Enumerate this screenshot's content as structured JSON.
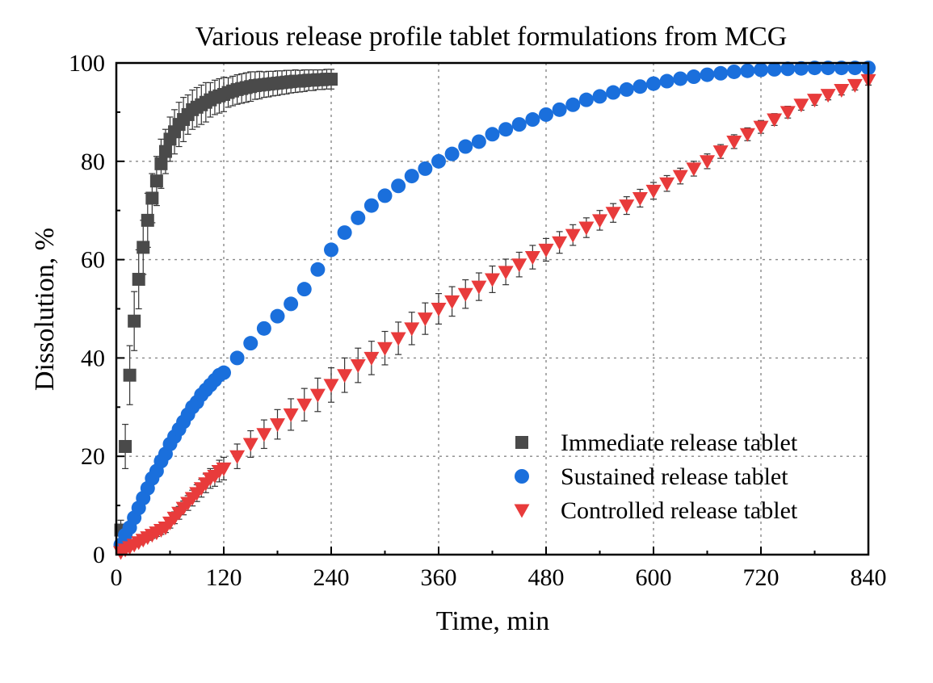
{
  "chart_data": {
    "type": "scatter",
    "title": "Various release profile tablet formulations from MCG",
    "xlabel": "Time, min",
    "ylabel": "Dissolution, %",
    "xlim": [
      0,
      840
    ],
    "ylim": [
      0,
      100
    ],
    "xticks": [
      "0",
      "120",
      "240",
      "360",
      "480",
      "600",
      "720",
      "840"
    ],
    "yticks": [
      "0",
      "20",
      "40",
      "60",
      "80",
      "100"
    ],
    "grid": true,
    "legend_position": "bottom-right",
    "series": [
      {
        "name": "Immediate release tablet",
        "marker": "square",
        "color": "#4a4a4a",
        "x": [
          5,
          10,
          15,
          20,
          25,
          30,
          35,
          40,
          45,
          50,
          55,
          60,
          65,
          70,
          75,
          80,
          85,
          90,
          95,
          100,
          105,
          110,
          115,
          120,
          125,
          130,
          135,
          140,
          145,
          150,
          155,
          160,
          165,
          170,
          175,
          180,
          185,
          190,
          195,
          200,
          205,
          210,
          215,
          220,
          225,
          230,
          235,
          240
        ],
        "y": [
          5,
          22,
          36.5,
          47.5,
          56,
          62.5,
          68,
          72.5,
          76,
          79.5,
          82,
          84.5,
          86,
          87.5,
          88.5,
          89.5,
          90.5,
          91,
          91.5,
          92,
          92.5,
          93,
          93.3,
          93.6,
          94,
          94.3,
          94.6,
          94.8,
          95,
          95.2,
          95.4,
          95.5,
          95.6,
          95.7,
          95.8,
          95.9,
          96,
          96.1,
          96.2,
          96.3,
          96.3,
          96.4,
          96.5,
          96.5,
          96.6,
          96.6,
          96.7,
          96.7
        ],
        "error": [
          2,
          4.5,
          6,
          6,
          6,
          5.5,
          5.5,
          5,
          5,
          5,
          4.5,
          4.5,
          4.5,
          4.5,
          4.5,
          4,
          4,
          4,
          4,
          4,
          3.5,
          3.5,
          3.5,
          3.5,
          3,
          3,
          3,
          3,
          3,
          3,
          2.8,
          2.8,
          2.6,
          2.6,
          2.5,
          2.5,
          2.4,
          2.4,
          2.3,
          2.3,
          2.2,
          2.2,
          2.1,
          2.1,
          2,
          2,
          2,
          2
        ]
      },
      {
        "name": "Sustained release tablet",
        "marker": "circle",
        "color": "#1a6fdc",
        "x": [
          5,
          10,
          15,
          20,
          25,
          30,
          35,
          40,
          45,
          50,
          55,
          60,
          65,
          70,
          75,
          80,
          85,
          90,
          95,
          100,
          105,
          110,
          115,
          120,
          135,
          150,
          165,
          180,
          195,
          210,
          225,
          240,
          255,
          270,
          285,
          300,
          315,
          330,
          345,
          360,
          375,
          390,
          405,
          420,
          435,
          450,
          465,
          480,
          495,
          510,
          525,
          540,
          555,
          570,
          585,
          600,
          615,
          630,
          645,
          660,
          675,
          690,
          705,
          720,
          735,
          750,
          765,
          780,
          795,
          810,
          825,
          840
        ],
        "y": [
          2,
          4,
          5.5,
          7.5,
          9.5,
          11.5,
          13.5,
          15.5,
          17,
          19,
          20.5,
          22.5,
          24,
          25.5,
          27,
          28.5,
          30,
          31,
          32.5,
          33.5,
          34.5,
          35.5,
          36.5,
          37,
          40,
          43,
          46,
          48.5,
          51,
          54,
          58,
          62,
          65.5,
          68.5,
          71,
          73,
          75,
          77,
          78.5,
          80,
          81.5,
          83,
          84,
          85.5,
          86.5,
          87.5,
          88.5,
          89.5,
          90.5,
          91.5,
          92.5,
          93.2,
          94,
          94.6,
          95.2,
          95.8,
          96.3,
          96.8,
          97.2,
          97.6,
          97.9,
          98.2,
          98.4,
          98.6,
          98.7,
          98.8,
          98.9,
          99,
          99,
          99,
          99,
          99
        ],
        "error": [
          0.5,
          0.5,
          0.5,
          0.6,
          0.6,
          0.6,
          0.6,
          0.7,
          0.7,
          0.7,
          0.7,
          0.7,
          0.7,
          0.8,
          0.8,
          0.8,
          0.8,
          0.8,
          0.8,
          0.8,
          0.8,
          0.8,
          0.8,
          0.8,
          0.8,
          0.8,
          0.8,
          0.8,
          0.8,
          0.8,
          0.8,
          0.8,
          0.8,
          0.8,
          0.8,
          0.8,
          0.8,
          0.8,
          0.8,
          0.8,
          0.8,
          0.8,
          0.8,
          0.8,
          0.8,
          0.8,
          0.8,
          0.8,
          0.8,
          0.8,
          0.8,
          0.8,
          0.8,
          0.8,
          0.8,
          0.8,
          0.8,
          0.8,
          0.8,
          0.8,
          0.8,
          0.8,
          0.8,
          0.8,
          0.8,
          0.8,
          0.8,
          0.8,
          0.8,
          0.8,
          0.8,
          0.8
        ]
      },
      {
        "name": "Controlled release tablet",
        "marker": "triangle-down",
        "color": "#e83b3b",
        "x": [
          5,
          10,
          15,
          20,
          25,
          30,
          35,
          40,
          45,
          50,
          55,
          60,
          65,
          70,
          75,
          80,
          85,
          90,
          95,
          100,
          105,
          110,
          115,
          120,
          135,
          150,
          165,
          180,
          195,
          210,
          225,
          240,
          255,
          270,
          285,
          300,
          315,
          330,
          345,
          360,
          375,
          390,
          405,
          420,
          435,
          450,
          465,
          480,
          495,
          510,
          525,
          540,
          555,
          570,
          585,
          600,
          615,
          630,
          645,
          660,
          675,
          690,
          705,
          720,
          735,
          750,
          765,
          780,
          795,
          810,
          825,
          840
        ],
        "y": [
          0.5,
          1,
          1.5,
          2,
          2.5,
          3,
          3.5,
          4,
          4.5,
          5,
          5.5,
          6.5,
          7.5,
          8.5,
          9.5,
          10.5,
          11.5,
          12.5,
          13.5,
          14.5,
          15.5,
          16,
          17,
          17.5,
          20,
          22.5,
          24.5,
          26.5,
          28.5,
          30.5,
          32.5,
          34.5,
          36.5,
          38.5,
          40,
          42,
          44,
          46,
          48,
          50,
          51.5,
          53,
          54.5,
          56,
          57.5,
          59,
          60.5,
          62,
          63.5,
          65,
          66.5,
          68,
          69.5,
          71,
          72.5,
          74,
          75.5,
          77,
          78.5,
          80,
          82,
          84,
          85.5,
          87,
          88.5,
          90,
          91.5,
          92.5,
          93.5,
          94.5,
          95.5,
          96.5
        ],
        "error": [
          0.3,
          0.3,
          0.4,
          0.4,
          0.5,
          0.5,
          0.6,
          0.7,
          0.8,
          0.9,
          1,
          1.1,
          1.2,
          1.3,
          1.4,
          1.5,
          1.6,
          1.7,
          1.8,
          1.9,
          2,
          2.1,
          2.2,
          2.3,
          2.5,
          2.7,
          2.9,
          3,
          3.2,
          3.3,
          3.4,
          3.5,
          3.5,
          3.5,
          3.4,
          3.4,
          3.3,
          3.3,
          3.2,
          3.1,
          3,
          2.9,
          2.8,
          2.7,
          2.6,
          2.5,
          2.4,
          2.3,
          2.2,
          2.1,
          2,
          2,
          1.9,
          1.8,
          1.8,
          1.7,
          1.6,
          1.6,
          1.5,
          1.5,
          1.4,
          1.4,
          1.3,
          1.3,
          1.2,
          1.2,
          1.1,
          1.1,
          1,
          1,
          1,
          1
        ]
      }
    ]
  }
}
